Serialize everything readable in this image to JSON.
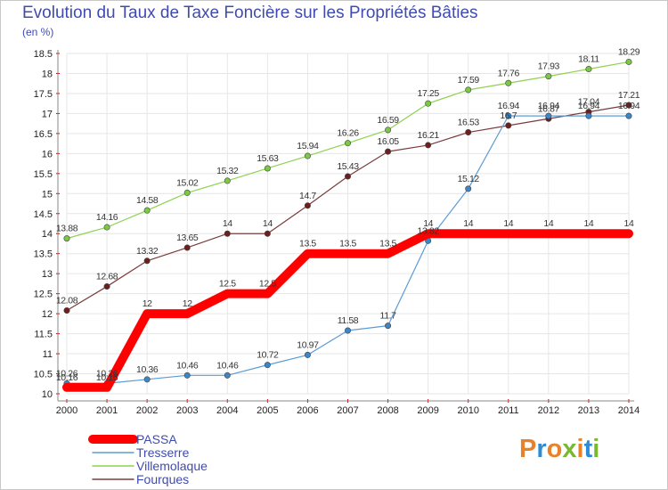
{
  "chart_data": {
    "type": "line",
    "title": "Evolution du Taux de Taxe Foncière sur les Propriétés Bâties",
    "unit_label": "(en %)",
    "x": [
      "2000",
      "2001",
      "2002",
      "2003",
      "2004",
      "2005",
      "2006",
      "2007",
      "2008",
      "2009",
      "2010",
      "2011",
      "2012",
      "2013",
      "2014"
    ],
    "ylim": [
      10,
      18.5
    ],
    "yticks": [
      "10",
      "10.5",
      "11",
      "11.5",
      "12",
      "12.5",
      "13",
      "13.5",
      "14",
      "14.5",
      "15",
      "15.5",
      "16",
      "16.5",
      "17",
      "17.5",
      "18",
      "18.5"
    ],
    "grid": true,
    "legend_position": "bottom-left",
    "series": [
      {
        "name": "PASSA",
        "color": "#ff0000",
        "values": [
          10.16,
          10.16,
          12,
          12,
          12.5,
          12.5,
          13.5,
          13.5,
          13.5,
          14,
          14,
          14,
          14,
          14,
          14
        ],
        "labels": [
          "10.16",
          "10.16",
          "12",
          "12",
          "12.5",
          "12.5",
          "13.5",
          "13.5",
          "13.5",
          "14",
          "14",
          "14",
          "14",
          "14",
          "14"
        ]
      },
      {
        "name": "Tresserre",
        "color": "#5b9bd5",
        "values": [
          10.26,
          10.26,
          10.36,
          10.46,
          10.46,
          10.72,
          10.97,
          11.58,
          11.7,
          13.82,
          15.12,
          16.94,
          16.94,
          16.94,
          16.94
        ],
        "labels": [
          "10.26",
          "10.26",
          "10.36",
          "10.46",
          "10.46",
          "10.72",
          "10.97",
          "11.58",
          "11.7",
          "13.82",
          "15.12",
          "16.94",
          "16.94",
          "16.94",
          "16.94"
        ]
      },
      {
        "name": "Villemolaque",
        "color": "#8fd14f",
        "values": [
          13.88,
          14.16,
          14.58,
          15.02,
          15.32,
          15.63,
          15.94,
          16.26,
          16.59,
          17.25,
          17.59,
          17.76,
          17.93,
          18.11,
          18.29
        ],
        "labels": [
          "13.88",
          "14.16",
          "14.58",
          "15.02",
          "15.32",
          "15.63",
          "15.94",
          "16.26",
          "16.59",
          "17.25",
          "17.59",
          "17.76",
          "17.93",
          "18.11",
          "18.29"
        ]
      },
      {
        "name": "Fourques",
        "color": "#7a3b3b",
        "values": [
          12.08,
          12.68,
          13.32,
          13.65,
          14,
          14,
          14.7,
          15.43,
          16.05,
          16.21,
          16.53,
          16.7,
          16.87,
          17.04,
          17.21
        ],
        "labels": [
          "12.08",
          "12.68",
          "13.32",
          "13.65",
          "14",
          "14",
          "14.7",
          "15.43",
          "16.05",
          "16.21",
          "16.53",
          "16.7",
          "16.87",
          "17.04",
          "17.21"
        ]
      }
    ]
  },
  "logo": {
    "text": "Proxiti",
    "colors": [
      "#e8822a",
      "#2e8bd6",
      "#e8822a",
      "#7ab832",
      "#e8822a",
      "#2e8bd6",
      "#7ab832"
    ]
  }
}
